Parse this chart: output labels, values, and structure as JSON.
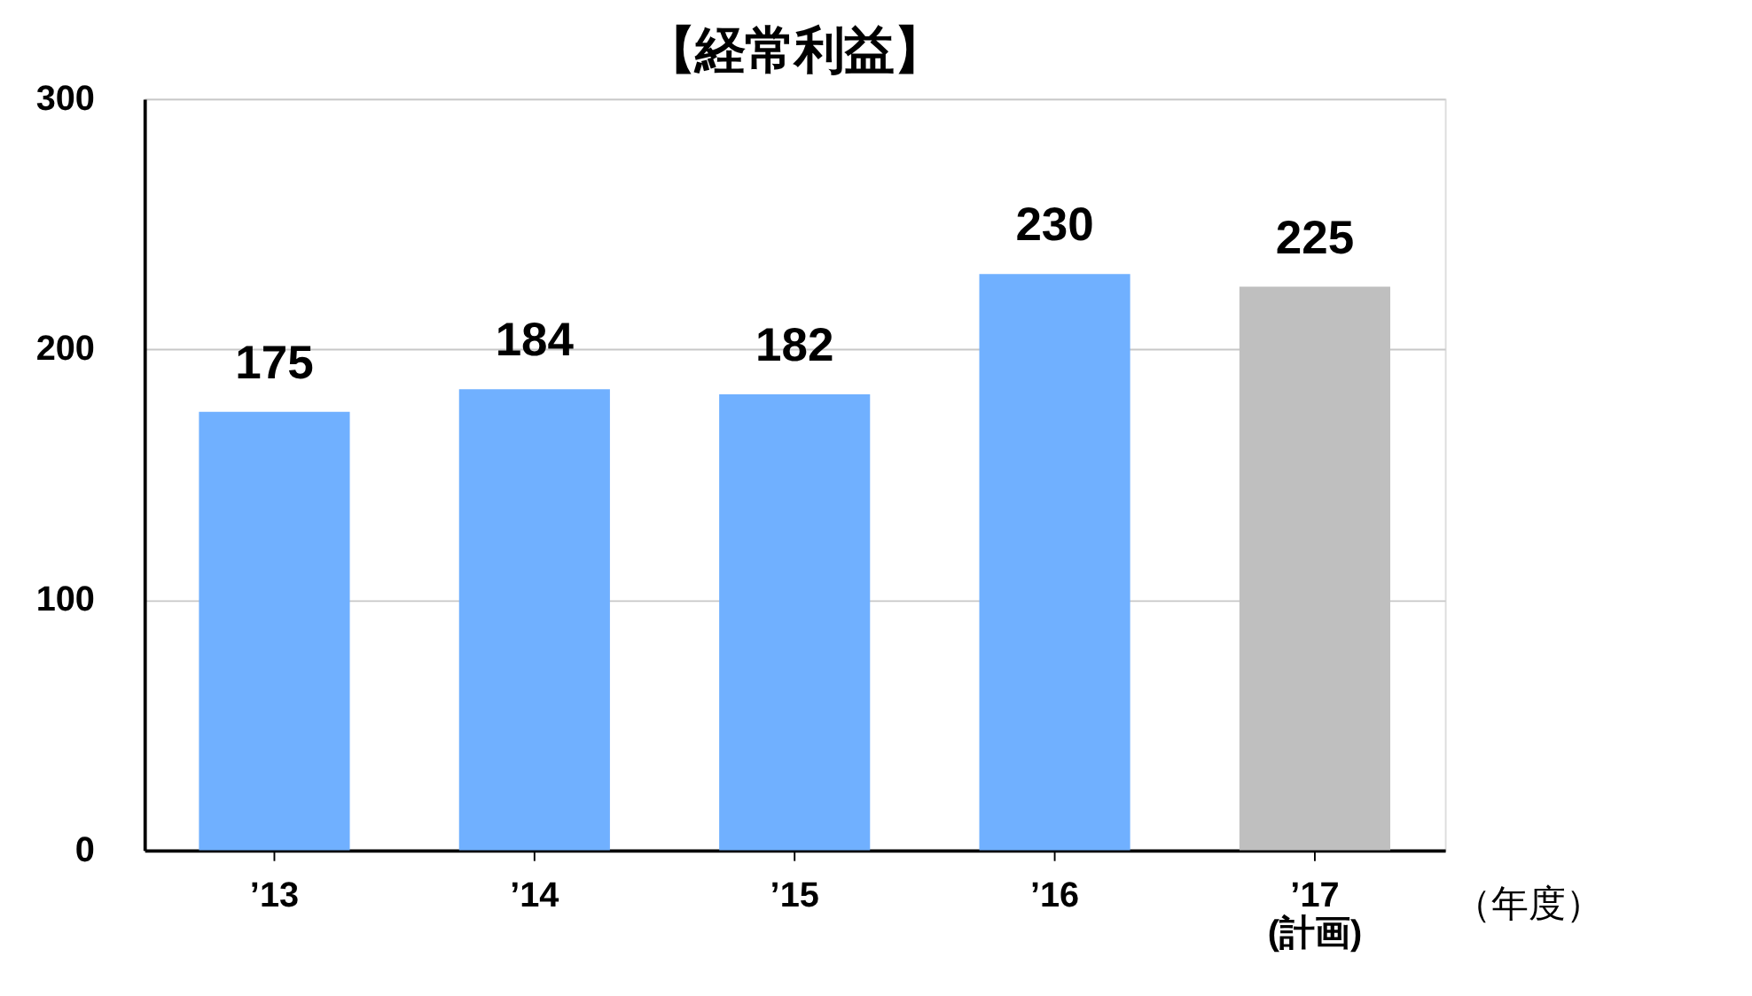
{
  "chart_data": {
    "type": "bar",
    "title": "【経常利益】",
    "xlabel": "（年度）",
    "categories": [
      "’13",
      "’14",
      "’15",
      "’16",
      "’17\n(計画)"
    ],
    "values": [
      175,
      184,
      182,
      230,
      225
    ],
    "colors": [
      "#70b0ff",
      "#70b0ff",
      "#70b0ff",
      "#70b0ff",
      "#bfbfbf"
    ],
    "ylim": [
      0,
      300
    ],
    "yticks": [
      0,
      100,
      200,
      300
    ],
    "grid": "y",
    "data_labels": true
  }
}
